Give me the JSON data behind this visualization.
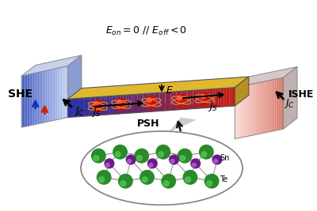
{
  "fig_w": 4.0,
  "fig_h": 2.67,
  "dpi": 100,
  "she_label": "SHE",
  "ishe_label": "ISHE",
  "psh_label": "PSH",
  "jc_label": "$J_C$",
  "js_label": "$J_S$",
  "e_label": "$E$",
  "te_label": "Te",
  "sn_label": "Sn",
  "equation": "$E_{on} = 0$ // $E_{off} < 0$",
  "te_color": "#2a8a2a",
  "sn_color": "#6a1a88",
  "she_blue_dark": [
    0.25,
    0.35,
    0.75
  ],
  "she_blue_light": [
    0.75,
    0.82,
    0.95
  ],
  "ishe_red_light": [
    0.98,
    0.85,
    0.82
  ],
  "ishe_red_dark": [
    0.85,
    0.45,
    0.4
  ],
  "channel_blue": [
    0.15,
    0.2,
    0.65
  ],
  "channel_red": [
    0.8,
    0.1,
    0.05
  ],
  "gate_yellow": "#e0b830",
  "gate_yellow_dark": "#b89020",
  "electron_color": "#cc1100",
  "arrow_black": "#111111",
  "arrow_red": "#cc2200",
  "arrow_blue": "#1133bb"
}
